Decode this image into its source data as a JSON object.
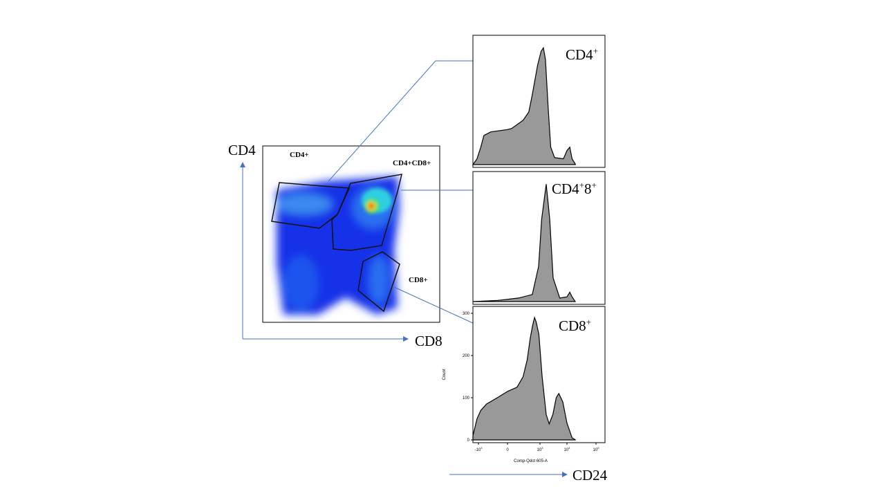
{
  "axes_labels": {
    "y": "CD4",
    "x": "CD8",
    "histogram_x": "CD24"
  },
  "gate_labels": {
    "cd4": "CD4+",
    "dp": "CD4+CD8+",
    "cd8": "CD8+"
  },
  "histogram_titles": {
    "cd4": {
      "main": "CD4",
      "sup": "+"
    },
    "dp": {
      "main": "CD4",
      "sup1": "+",
      "mid": "8",
      "sup2": "+"
    },
    "cd8": {
      "main": "CD8",
      "sup": "+"
    }
  },
  "colors": {
    "arrow": "#4472c4",
    "fill": "#999999",
    "outline": "#000000",
    "density_low": "#0000ff",
    "density_high": "#ff0000"
  },
  "chart_data": [
    {
      "type": "area",
      "xscale": "biexponential",
      "y_unit": "percent of max",
      "x": [
        -1000,
        -700,
        -500,
        -380,
        -200,
        0,
        40,
        200,
        350,
        490,
        800,
        1100,
        1340,
        1600,
        2000,
        2500,
        3500,
        7400,
        10000,
        12500,
        15000,
        20000
      ],
      "y": [
        0,
        5,
        15,
        25,
        28,
        30,
        31,
        38,
        45,
        60,
        85,
        97,
        100,
        90,
        50,
        15,
        6,
        5,
        12,
        15,
        5,
        0
      ]
    },
    {
      "type": "area",
      "xscale": "biexponential",
      "y_unit": "percent of max",
      "x": [
        -1000,
        -94,
        120,
        490,
        880,
        1150,
        1700,
        2300,
        3070,
        5400,
        10000,
        12500,
        15000,
        19300
      ],
      "y": [
        0,
        1,
        3,
        6,
        30,
        70,
        100,
        70,
        20,
        3,
        4,
        8,
        4,
        0
      ]
    },
    {
      "type": "area",
      "xlabel": "Comp-Qdot 605-A",
      "ylabel": "Count",
      "xscale": "biexponential",
      "yticks": [
        "0",
        "100",
        "200",
        "300"
      ],
      "xticks": [
        "-10^3",
        "0",
        "10^3",
        "10^4",
        "10^5"
      ],
      "ylim": [
        0,
        310
      ],
      "x": [
        -1500,
        -1000,
        -700,
        -500,
        -300,
        -100,
        0,
        100,
        200,
        300,
        400,
        500,
        600,
        700,
        900,
        1200,
        1700,
        2200,
        3000,
        4000,
        5000,
        7000,
        10000,
        15000,
        20000
      ],
      "y": [
        0,
        10,
        50,
        70,
        85,
        100,
        115,
        125,
        150,
        190,
        240,
        270,
        290,
        280,
        250,
        150,
        60,
        38,
        60,
        100,
        110,
        90,
        40,
        5,
        0
      ]
    }
  ]
}
